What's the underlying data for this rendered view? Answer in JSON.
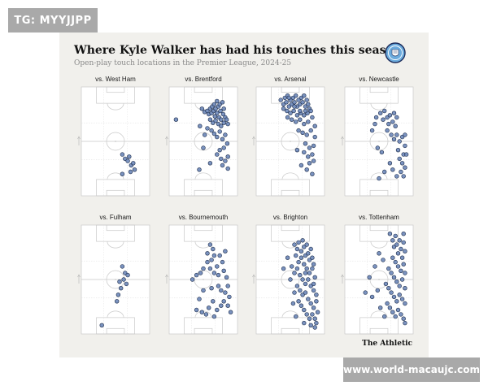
{
  "watermarks": {
    "top_left": "TG: MYYJJPP",
    "bottom_right": "www.world-macaujc.com"
  },
  "header": {
    "title": "Where Kyle Walker has had his touches this season",
    "subtitle": "Open-play touch locations in the Premier League, 2024-25"
  },
  "brand": "The Athletic",
  "badge_icon": "manchester-city-crest-icon",
  "colors": {
    "dot_fill": "#6b86b8",
    "dot_stroke": "#1f2f4d",
    "pitch_line": "#c9c9c9",
    "background": "#f1f0ec"
  },
  "chart_data": {
    "type": "scatter",
    "pitch": {
      "x_range": [
        0,
        100
      ],
      "y_range": [
        0,
        100
      ],
      "attack_direction": "up"
    },
    "panels": [
      {
        "label": "vs. West Ham",
        "points": [
          [
            60,
            62
          ],
          [
            64,
            66
          ],
          [
            70,
            64
          ],
          [
            73,
            72
          ],
          [
            76,
            70
          ],
          [
            72,
            78
          ],
          [
            60,
            80
          ],
          [
            68,
            68
          ],
          [
            78,
            76
          ]
        ]
      },
      {
        "label": "vs. Brentford",
        "points": [
          [
            48,
            20
          ],
          [
            52,
            23
          ],
          [
            56,
            22
          ],
          [
            58,
            25
          ],
          [
            60,
            20
          ],
          [
            62,
            24
          ],
          [
            63,
            18
          ],
          [
            65,
            22
          ],
          [
            66,
            16
          ],
          [
            67,
            27
          ],
          [
            68,
            20
          ],
          [
            70,
            13
          ],
          [
            70,
            24
          ],
          [
            72,
            18
          ],
          [
            73,
            28
          ],
          [
            74,
            16
          ],
          [
            75,
            22
          ],
          [
            76,
            30
          ],
          [
            78,
            14
          ],
          [
            79,
            25
          ],
          [
            80,
            20
          ],
          [
            82,
            28
          ],
          [
            60,
            30
          ],
          [
            64,
            33
          ],
          [
            68,
            31
          ],
          [
            72,
            34
          ],
          [
            76,
            36
          ],
          [
            80,
            33
          ],
          [
            84,
            30
          ],
          [
            86,
            34
          ],
          [
            56,
            38
          ],
          [
            62,
            40
          ],
          [
            66,
            43
          ],
          [
            70,
            46
          ],
          [
            74,
            41
          ],
          [
            78,
            48
          ],
          [
            82,
            44
          ],
          [
            85,
            52
          ],
          [
            80,
            56
          ],
          [
            74,
            58
          ],
          [
            70,
            62
          ],
          [
            76,
            66
          ],
          [
            82,
            68
          ],
          [
            86,
            64
          ],
          [
            10,
            30
          ],
          [
            45,
            36
          ],
          [
            52,
            44
          ],
          [
            50,
            56
          ],
          [
            78,
            72
          ],
          [
            86,
            75
          ],
          [
            44,
            76
          ],
          [
            60,
            70
          ]
        ]
      },
      {
        "label": "vs. Arsenal",
        "points": [
          [
            36,
            12
          ],
          [
            40,
            16
          ],
          [
            42,
            10
          ],
          [
            44,
            14
          ],
          [
            46,
            8
          ],
          [
            48,
            18
          ],
          [
            50,
            12
          ],
          [
            52,
            16
          ],
          [
            54,
            10
          ],
          [
            56,
            14
          ],
          [
            58,
            8
          ],
          [
            60,
            18
          ],
          [
            62,
            12
          ],
          [
            64,
            16
          ],
          [
            66,
            10
          ],
          [
            68,
            14
          ],
          [
            70,
            8
          ],
          [
            72,
            18
          ],
          [
            74,
            12
          ],
          [
            76,
            16
          ],
          [
            78,
            20
          ],
          [
            45,
            22
          ],
          [
            50,
            24
          ],
          [
            55,
            22
          ],
          [
            60,
            26
          ],
          [
            65,
            24
          ],
          [
            70,
            26
          ],
          [
            75,
            24
          ],
          [
            80,
            22
          ],
          [
            52,
            30
          ],
          [
            58,
            32
          ],
          [
            64,
            30
          ],
          [
            70,
            34
          ],
          [
            76,
            32
          ],
          [
            82,
            28
          ],
          [
            86,
            36
          ],
          [
            62,
            40
          ],
          [
            68,
            42
          ],
          [
            74,
            44
          ],
          [
            80,
            40
          ],
          [
            86,
            46
          ],
          [
            72,
            52
          ],
          [
            78,
            56
          ],
          [
            84,
            54
          ],
          [
            70,
            60
          ],
          [
            76,
            64
          ],
          [
            82,
            62
          ],
          [
            78,
            70
          ],
          [
            84,
            68
          ],
          [
            74,
            76
          ],
          [
            82,
            80
          ],
          [
            66,
            72
          ],
          [
            60,
            58
          ],
          [
            46,
            28
          ],
          [
            40,
            20
          ],
          [
            56,
            18
          ],
          [
            48,
            10
          ],
          [
            64,
            22
          ],
          [
            72,
            22
          ]
        ]
      },
      {
        "label": "vs. Newcastle",
        "points": [
          [
            40,
            40
          ],
          [
            44,
            34
          ],
          [
            46,
            28
          ],
          [
            52,
            24
          ],
          [
            56,
            30
          ],
          [
            58,
            22
          ],
          [
            62,
            28
          ],
          [
            64,
            34
          ],
          [
            66,
            26
          ],
          [
            70,
            32
          ],
          [
            72,
            24
          ],
          [
            74,
            36
          ],
          [
            76,
            28
          ],
          [
            62,
            40
          ],
          [
            68,
            44
          ],
          [
            72,
            48
          ],
          [
            76,
            44
          ],
          [
            80,
            50
          ],
          [
            84,
            46
          ],
          [
            88,
            54
          ],
          [
            86,
            62
          ],
          [
            80,
            66
          ],
          [
            84,
            70
          ],
          [
            88,
            74
          ],
          [
            82,
            78
          ],
          [
            76,
            82
          ],
          [
            86,
            82
          ],
          [
            70,
            76
          ],
          [
            66,
            70
          ],
          [
            58,
            78
          ],
          [
            50,
            84
          ],
          [
            48,
            56
          ],
          [
            54,
            60
          ],
          [
            90,
            62
          ],
          [
            88,
            44
          ],
          [
            78,
            58
          ]
        ]
      },
      {
        "label": "vs. Fulham",
        "points": [
          [
            60,
            38
          ],
          [
            64,
            44
          ],
          [
            62,
            50
          ],
          [
            66,
            54
          ],
          [
            58,
            58
          ],
          [
            54,
            64
          ],
          [
            52,
            70
          ],
          [
            68,
            46
          ],
          [
            56,
            52
          ],
          [
            30,
            92
          ]
        ]
      },
      {
        "label": "vs. Bournemouth",
        "points": [
          [
            60,
            18
          ],
          [
            64,
            22
          ],
          [
            66,
            28
          ],
          [
            62,
            32
          ],
          [
            56,
            34
          ],
          [
            50,
            40
          ],
          [
            46,
            44
          ],
          [
            40,
            46
          ],
          [
            34,
            50
          ],
          [
            60,
            40
          ],
          [
            66,
            44
          ],
          [
            70,
            38
          ],
          [
            72,
            46
          ],
          [
            78,
            34
          ],
          [
            80,
            42
          ],
          [
            84,
            48
          ],
          [
            86,
            56
          ],
          [
            82,
            62
          ],
          [
            88,
            66
          ],
          [
            80,
            70
          ],
          [
            76,
            74
          ],
          [
            70,
            78
          ],
          [
            64,
            70
          ],
          [
            58,
            76
          ],
          [
            54,
            82
          ],
          [
            48,
            80
          ],
          [
            44,
            68
          ],
          [
            50,
            60
          ],
          [
            62,
            58
          ],
          [
            72,
            56
          ],
          [
            76,
            60
          ],
          [
            86,
            74
          ],
          [
            90,
            80
          ],
          [
            66,
            84
          ],
          [
            40,
            78
          ],
          [
            56,
            26
          ],
          [
            74,
            28
          ],
          [
            82,
            24
          ]
        ]
      },
      {
        "label": "vs. Brighton",
        "points": [
          [
            56,
            18
          ],
          [
            60,
            22
          ],
          [
            62,
            16
          ],
          [
            66,
            24
          ],
          [
            68,
            14
          ],
          [
            70,
            20
          ],
          [
            72,
            28
          ],
          [
            74,
            18
          ],
          [
            76,
            26
          ],
          [
            78,
            32
          ],
          [
            80,
            22
          ],
          [
            82,
            30
          ],
          [
            84,
            36
          ],
          [
            58,
            28
          ],
          [
            62,
            34
          ],
          [
            66,
            30
          ],
          [
            70,
            36
          ],
          [
            74,
            40
          ],
          [
            78,
            44
          ],
          [
            82,
            40
          ],
          [
            86,
            48
          ],
          [
            52,
            38
          ],
          [
            56,
            44
          ],
          [
            60,
            40
          ],
          [
            64,
            46
          ],
          [
            68,
            50
          ],
          [
            72,
            54
          ],
          [
            76,
            50
          ],
          [
            80,
            56
          ],
          [
            84,
            60
          ],
          [
            88,
            64
          ],
          [
            60,
            56
          ],
          [
            64,
            60
          ],
          [
            68,
            64
          ],
          [
            72,
            62
          ],
          [
            76,
            68
          ],
          [
            80,
            72
          ],
          [
            84,
            76
          ],
          [
            88,
            70
          ],
          [
            62,
            70
          ],
          [
            66,
            74
          ],
          [
            70,
            78
          ],
          [
            74,
            82
          ],
          [
            78,
            86
          ],
          [
            82,
            82
          ],
          [
            86,
            86
          ],
          [
            88,
            90
          ],
          [
            56,
            62
          ],
          [
            50,
            50
          ],
          [
            46,
            30
          ],
          [
            40,
            40
          ],
          [
            54,
            72
          ],
          [
            58,
            84
          ],
          [
            80,
            92
          ],
          [
            70,
            90
          ],
          [
            86,
            94
          ],
          [
            90,
            80
          ],
          [
            84,
            54
          ],
          [
            72,
            44
          ]
        ]
      },
      {
        "label": "vs. Tottenham",
        "points": [
          [
            66,
            8
          ],
          [
            70,
            14
          ],
          [
            72,
            20
          ],
          [
            74,
            10
          ],
          [
            76,
            18
          ],
          [
            78,
            26
          ],
          [
            80,
            14
          ],
          [
            82,
            22
          ],
          [
            84,
            30
          ],
          [
            86,
            16
          ],
          [
            88,
            24
          ],
          [
            70,
            30
          ],
          [
            74,
            34
          ],
          [
            78,
            38
          ],
          [
            82,
            42
          ],
          [
            86,
            36
          ],
          [
            88,
            44
          ],
          [
            64,
            40
          ],
          [
            68,
            44
          ],
          [
            72,
            48
          ],
          [
            76,
            52
          ],
          [
            80,
            56
          ],
          [
            84,
            50
          ],
          [
            88,
            58
          ],
          [
            60,
            54
          ],
          [
            64,
            58
          ],
          [
            68,
            62
          ],
          [
            72,
            66
          ],
          [
            76,
            70
          ],
          [
            80,
            64
          ],
          [
            84,
            68
          ],
          [
            88,
            72
          ],
          [
            62,
            72
          ],
          [
            66,
            76
          ],
          [
            70,
            80
          ],
          [
            74,
            84
          ],
          [
            78,
            78
          ],
          [
            82,
            82
          ],
          [
            86,
            86
          ],
          [
            88,
            90
          ],
          [
            58,
            84
          ],
          [
            52,
            76
          ],
          [
            48,
            60
          ],
          [
            40,
            66
          ],
          [
            30,
            62
          ],
          [
            36,
            48
          ],
          [
            44,
            38
          ],
          [
            50,
            26
          ],
          [
            56,
            32
          ],
          [
            86,
            8
          ]
        ]
      }
    ]
  }
}
